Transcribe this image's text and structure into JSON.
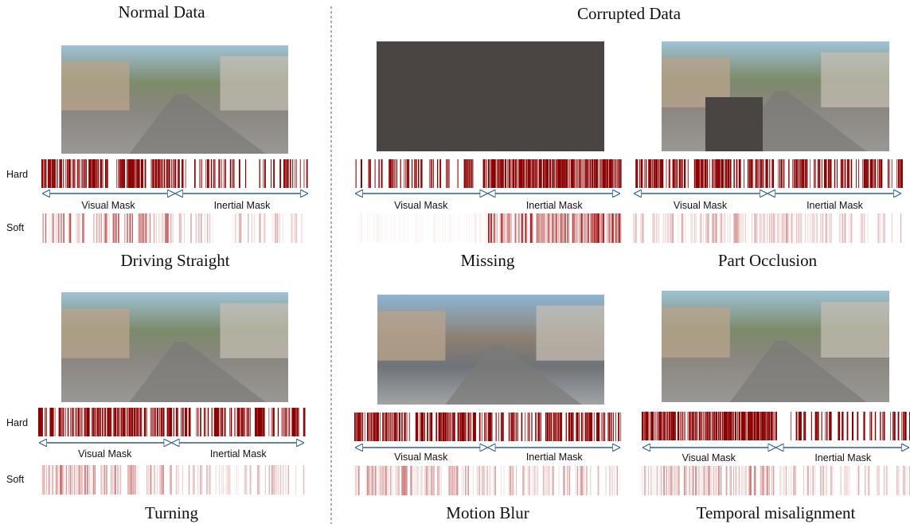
{
  "headers": {
    "normal": "Normal Data",
    "corrupted": "Corrupted Data"
  },
  "row_labels": {
    "hard": "Hard",
    "soft": "Soft"
  },
  "mask_labels": {
    "visual": "Visual Mask",
    "inertial": "Inertial Mask"
  },
  "panels": [
    {
      "caption": "Driving Straight"
    },
    {
      "caption": "Missing"
    },
    {
      "caption": "Part Occlusion"
    },
    {
      "caption": "Turning"
    },
    {
      "caption": "Motion Blur"
    },
    {
      "caption": "Temporal misalignment"
    }
  ]
}
